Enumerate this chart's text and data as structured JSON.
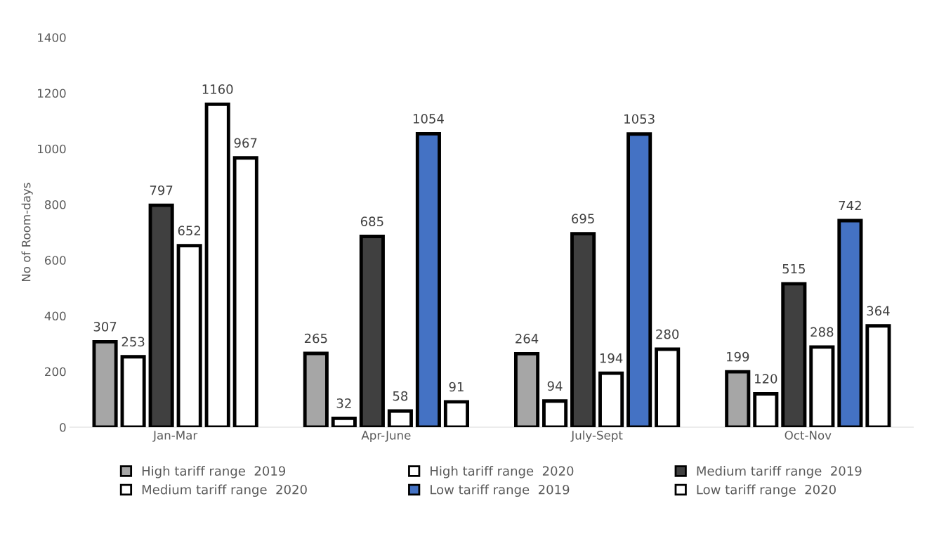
{
  "chart_data": {
    "type": "bar",
    "ylabel": "No of Room-days",
    "categories": [
      "Jan-Mar",
      "Apr-June",
      "July-Sept",
      "Oct-Nov"
    ],
    "series": [
      {
        "name": "High tariff range  2019",
        "color": "#a6a6a6",
        "values": [
          307,
          265,
          264,
          199
        ]
      },
      {
        "name": "High tariff range  2020",
        "color": "#ffffff",
        "values": [
          253,
          32,
          94,
          120
        ]
      },
      {
        "name": "Medium tariff range  2019",
        "color": "#404040",
        "values": [
          797,
          685,
          695,
          515
        ]
      },
      {
        "name": "Medium tariff range  2020",
        "color": "#ffffff",
        "values": [
          652,
          58,
          194,
          288
        ]
      },
      {
        "name": "Low tariff range  2019",
        "color": "#4472c4",
        "colors": [
          "#ffffff",
          "#4472c4",
          "#4472c4",
          "#4472c4"
        ],
        "values": [
          1160,
          1054,
          1053,
          742
        ]
      },
      {
        "name": "Low tariff range  2020",
        "color": "#ffffff",
        "values": [
          967,
          91,
          280,
          364
        ]
      }
    ],
    "ylim": [
      0,
      1400
    ],
    "yticks": [
      0,
      200,
      400,
      600,
      800,
      1000,
      1200,
      1400
    ],
    "grid": false,
    "legend": "bottom",
    "data_labels": true
  }
}
